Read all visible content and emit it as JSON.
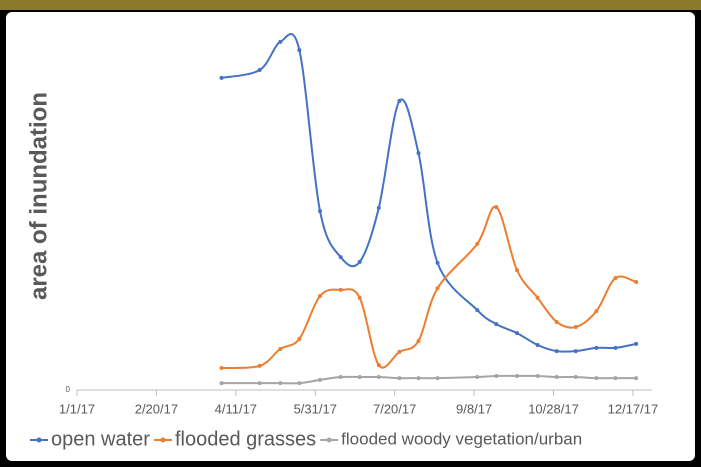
{
  "chart_data": {
    "type": "line",
    "y_label": "area of inundation",
    "xlim": [
      "2017-01-01",
      "2017-12-29"
    ],
    "xticks": [
      {
        "value": "2017-01-01",
        "label": "1/1/17"
      },
      {
        "value": "2017-02-20",
        "label": "2/20/17"
      },
      {
        "value": "2017-04-11",
        "label": "4/11/17"
      },
      {
        "value": "2017-05-31",
        "label": "5/31/17"
      },
      {
        "value": "2017-07-20",
        "label": "7/20/17"
      },
      {
        "value": "2017-09-08",
        "label": "9/8/17"
      },
      {
        "value": "2017-10-28",
        "label": "10/28/17"
      },
      {
        "value": "2017-12-17",
        "label": "12/17/17"
      }
    ],
    "ylim": [
      0,
      100
    ],
    "yticks": [
      0
    ],
    "legend": "bottom",
    "smooth": true,
    "x": [
      "2017-04-02",
      "2017-04-26",
      "2017-05-09",
      "2017-05-21",
      "2017-06-03",
      "2017-06-16",
      "2017-06-28",
      "2017-07-10",
      "2017-07-23",
      "2017-08-04",
      "2017-08-16",
      "2017-09-10",
      "2017-09-22",
      "2017-10-05",
      "2017-10-18",
      "2017-10-30",
      "2017-11-11",
      "2017-11-24",
      "2017-12-06",
      "2017-12-19"
    ],
    "series": [
      {
        "name": "open water",
        "color": "#4472c4",
        "values": [
          86.7,
          88.9,
          96.7,
          94.4,
          49.7,
          36.9,
          35.6,
          50.6,
          80.3,
          65.8,
          35.3,
          22.2,
          18.3,
          15.8,
          12.5,
          10.8,
          10.8,
          11.7,
          11.7,
          12.8
        ]
      },
      {
        "name": "flooded grasses",
        "color": "#ed7d31",
        "values": [
          6.1,
          6.7,
          11.4,
          14.2,
          26.1,
          27.8,
          25.6,
          6.9,
          10.6,
          13.6,
          28.3,
          40.6,
          50.8,
          33.3,
          25.6,
          18.9,
          17.5,
          21.9,
          31.1,
          30
        ]
      },
      {
        "name": "flooded woody vegetation/urban",
        "color": "#a5a5a5",
        "values": [
          1.9,
          1.9,
          1.9,
          1.9,
          2.8,
          3.6,
          3.6,
          3.6,
          3.3,
          3.3,
          3.3,
          3.6,
          3.9,
          3.9,
          3.9,
          3.6,
          3.6,
          3.3,
          3.3,
          3.3
        ]
      }
    ]
  }
}
